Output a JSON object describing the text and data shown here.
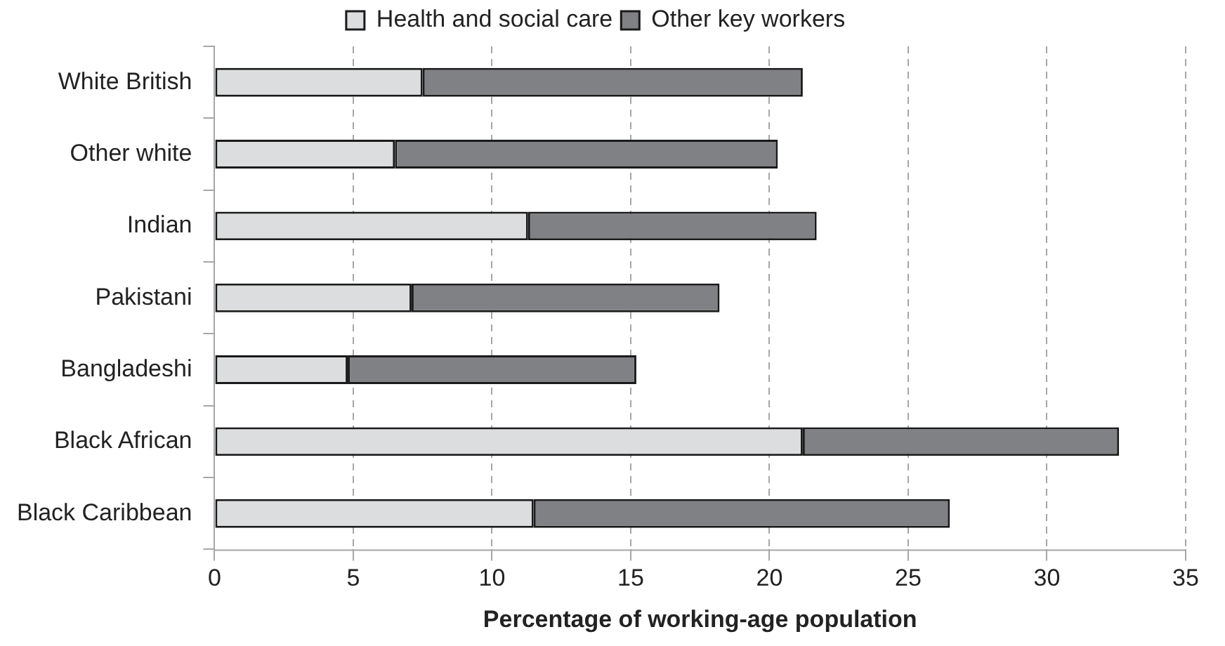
{
  "chart_data": {
    "type": "bar",
    "orientation": "horizontal",
    "stacked": true,
    "xlabel": "Percentage of working-age population",
    "categories": [
      "White British",
      "Other white",
      "Indian",
      "Pakistani",
      "Bangladeshi",
      "Black African",
      "Black Caribbean"
    ],
    "series": [
      {
        "name": "Health and social care",
        "color": "#dcdddf",
        "values": [
          7.5,
          6.5,
          11.3,
          7.1,
          4.8,
          21.2,
          11.5
        ]
      },
      {
        "name": "Other key workers",
        "color": "#808184",
        "values": [
          13.7,
          13.8,
          10.4,
          11.1,
          10.4,
          11.4,
          15.0
        ]
      }
    ],
    "xlim": [
      0,
      35
    ],
    "xticks": [
      0,
      5,
      10,
      15,
      20,
      25,
      30,
      35
    ],
    "grid": "x",
    "legend": "top"
  }
}
